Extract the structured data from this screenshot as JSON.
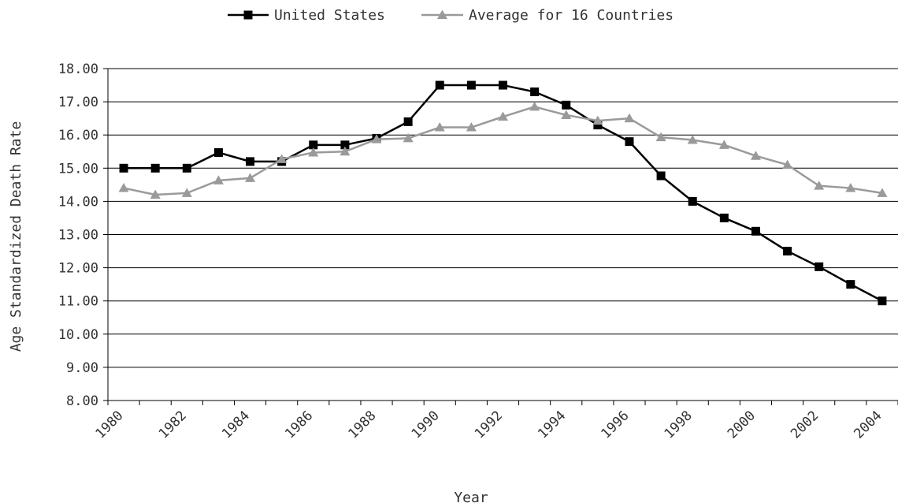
{
  "chart_data": {
    "type": "line",
    "title": "",
    "xlabel": "Year",
    "ylabel": "Age Standardized Death Rate",
    "x": [
      1980,
      1981,
      1982,
      1983,
      1984,
      1985,
      1986,
      1987,
      1988,
      1989,
      1990,
      1991,
      1992,
      1993,
      1994,
      1995,
      1996,
      1997,
      1998,
      1999,
      2000,
      2001,
      2002,
      2003,
      2004
    ],
    "x_tick_labels": [
      "1980",
      "1982",
      "1984",
      "1986",
      "1988",
      "1990",
      "1992",
      "1994",
      "1996",
      "1998",
      "2000",
      "2002",
      "2004"
    ],
    "y_tick_labels": [
      "8.00",
      "9.00",
      "10.00",
      "11.00",
      "12.00",
      "13.00",
      "14.00",
      "15.00",
      "16.00",
      "17.00",
      "18.00"
    ],
    "ylim": [
      8,
      18
    ],
    "grid": "horizontal",
    "legend_position": "top",
    "series": [
      {
        "name": "United States",
        "color": "#000000",
        "marker": "square",
        "values": [
          15.0,
          15.0,
          15.0,
          15.47,
          15.2,
          15.2,
          15.7,
          15.7,
          15.9,
          16.4,
          17.5,
          17.5,
          17.5,
          17.3,
          16.9,
          16.3,
          15.8,
          14.77,
          14.0,
          13.5,
          13.1,
          12.5,
          12.03,
          11.5,
          11.0
        ]
      },
      {
        "name": "Average for 16 Countries",
        "color": "#9a9a9a",
        "marker": "triangle",
        "values": [
          14.4,
          14.2,
          14.25,
          14.63,
          14.7,
          15.27,
          15.47,
          15.5,
          15.87,
          15.9,
          16.23,
          16.23,
          16.55,
          16.85,
          16.6,
          16.43,
          16.5,
          15.93,
          15.85,
          15.7,
          15.37,
          15.1,
          14.47,
          14.4,
          14.25
        ]
      }
    ]
  }
}
